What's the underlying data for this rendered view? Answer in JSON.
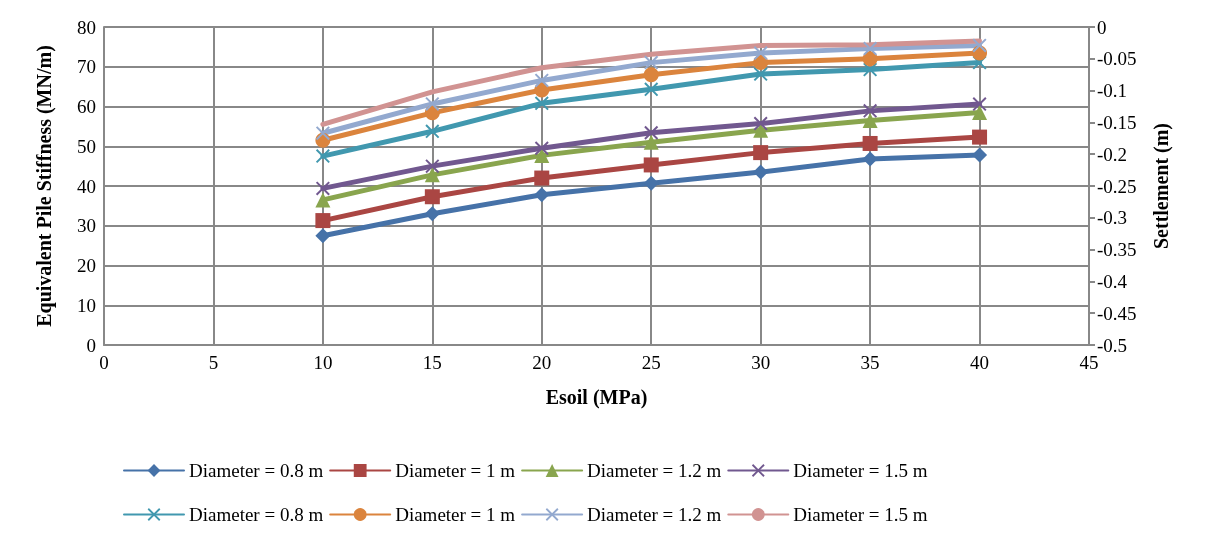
{
  "chart_data": {
    "type": "line",
    "xlabel": "Esoil (MPa)",
    "ylabel": "Equivalent Pile Stiffness (MN/m)",
    "y2label": "Settlement (m)",
    "x": [
      10,
      15,
      20,
      25,
      30,
      35,
      40
    ],
    "xlim": [
      0,
      45
    ],
    "xticks": [
      0,
      5,
      10,
      15,
      20,
      25,
      30,
      35,
      40,
      45
    ],
    "ylim": [
      0,
      80
    ],
    "yticks": [
      0,
      10,
      20,
      30,
      40,
      50,
      60,
      70,
      80
    ],
    "y2lim": [
      -0.5,
      0
    ],
    "y2ticks": [
      -0.5,
      -0.45,
      -0.4,
      -0.35,
      -0.3,
      -0.25,
      -0.2,
      -0.15,
      -0.1,
      -0.05,
      0
    ],
    "grid": true,
    "legend": "bottom",
    "series": [
      {
        "name": "Diameter = 0.8 m",
        "color": "#4672a8",
        "marker": "diamond",
        "values": [
          27.5,
          33,
          37.8,
          40.7,
          43.5,
          46.8,
          47.8
        ]
      },
      {
        "name": "Diameter = 1 m",
        "color": "#aa4643",
        "marker": "square",
        "values": [
          31.3,
          37.3,
          42,
          45.3,
          48.4,
          50.7,
          52.3
        ]
      },
      {
        "name": "Diameter = 1.2 m",
        "color": "#89a54e",
        "marker": "triangle",
        "values": [
          36.5,
          42.8,
          47.7,
          51,
          54,
          56.5,
          58.5
        ]
      },
      {
        "name": "Diameter = 1.5 m",
        "color": "#71588f",
        "marker": "cross",
        "values": [
          39.4,
          45,
          49.5,
          53.4,
          55.7,
          58.9,
          60.6
        ]
      },
      {
        "name": "Diameter = 0.8 m",
        "color": "#4198af",
        "marker": "cross",
        "axis": "y2",
        "values": [
          -0.203,
          -0.164,
          -0.12,
          -0.098,
          -0.074,
          -0.067,
          -0.056
        ]
      },
      {
        "name": "Diameter = 1 m",
        "color": "#db843d",
        "marker": "circle",
        "axis": "y2",
        "values": [
          -0.178,
          -0.135,
          -0.099,
          -0.075,
          -0.056,
          -0.05,
          -0.041
        ]
      },
      {
        "name": "Diameter = 1.2 m",
        "color": "#93a9cf",
        "marker": "cross",
        "axis": "y2",
        "values": [
          -0.167,
          -0.121,
          -0.084,
          -0.056,
          -0.041,
          -0.034,
          -0.029
        ]
      },
      {
        "name": "Diameter = 1.5 m",
        "color": "#d19392",
        "marker": "none",
        "axis": "y2",
        "values": [
          -0.153,
          -0.102,
          -0.064,
          -0.043,
          -0.029,
          -0.028,
          -0.022
        ]
      }
    ]
  }
}
